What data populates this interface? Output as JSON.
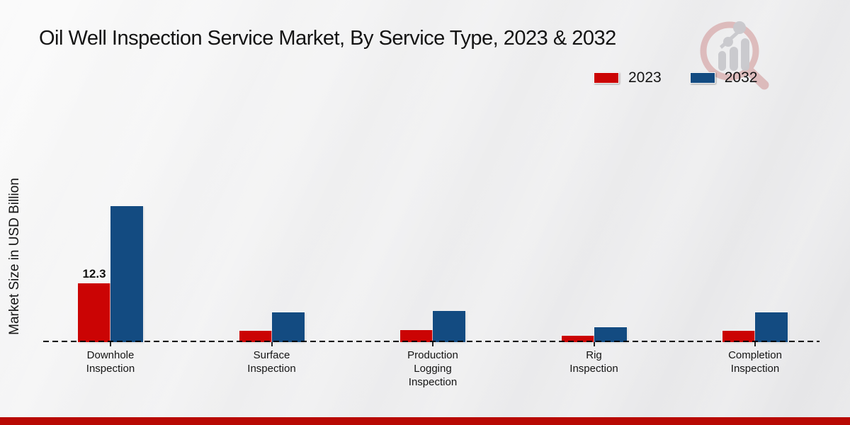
{
  "title": "Oil Well Inspection Service Market, By Service Type, 2023 & 2032",
  "ylabel": "Market Size in USD Billion",
  "colors": {
    "series_2023": "#cb0404",
    "series_2032": "#134b81",
    "footer_accent": "#b80903",
    "axis": "#000000",
    "watermark_ring": "#d79a9a",
    "watermark_bars": "#c9c9cd"
  },
  "legend": {
    "position": "top-right",
    "items": [
      "2023",
      "2032"
    ]
  },
  "chart_data": {
    "type": "bar",
    "title": "Oil Well Inspection Service Market, By Service Type, 2023 & 2032",
    "xlabel": "",
    "ylabel": "Market Size in USD Billion",
    "grid": false,
    "baseline_value": 0,
    "axis_style": "dashed zero line, no y ticks",
    "categories": [
      "Downhole Inspection",
      "Surface Inspection",
      "Production Logging Inspection",
      "Rig Inspection",
      "Completion Inspection"
    ],
    "series": [
      {
        "name": "2023",
        "color": "#cb0404",
        "values": [
          12.3,
          2.4,
          2.5,
          1.4,
          2.4
        ]
      },
      {
        "name": "2032",
        "color": "#134b81",
        "values": [
          28.4,
          6.2,
          6.5,
          3.1,
          6.2
        ]
      }
    ],
    "annotations": [
      {
        "series_index": 0,
        "category_index": 0,
        "text": "12.3"
      }
    ]
  }
}
